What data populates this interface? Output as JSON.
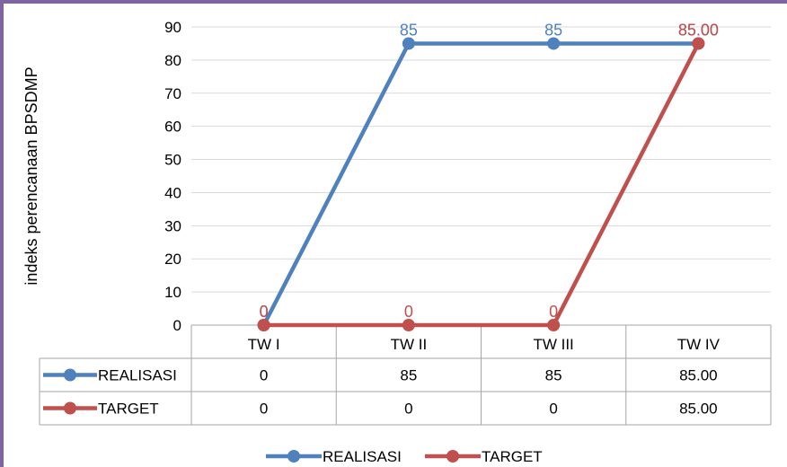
{
  "chart_data": {
    "type": "line",
    "ylabel": "indeks perencanaan BPSDMP",
    "ylim": [
      0,
      90
    ],
    "yticks": [
      0,
      10,
      20,
      30,
      40,
      50,
      60,
      70,
      80,
      90
    ],
    "categories": [
      "TW I",
      "TW II",
      "TW III",
      "TW IV"
    ],
    "grid": true,
    "legend": "bottom",
    "series": [
      {
        "name": "REALISASI",
        "values": [
          0,
          85,
          85,
          85
        ],
        "value_labels": [
          "0",
          "85",
          "85",
          "85.00"
        ],
        "color": "#4f81bd"
      },
      {
        "name": "TARGET",
        "values": [
          0,
          0,
          0,
          85
        ],
        "value_labels": [
          "0",
          "0",
          "0",
          "85.00"
        ],
        "color": "#c0504d"
      }
    ]
  },
  "colors": {
    "frame": "#8064a2",
    "grid": "#d9d9d9",
    "axis": "#a6a6a6",
    "text": "#000000"
  }
}
